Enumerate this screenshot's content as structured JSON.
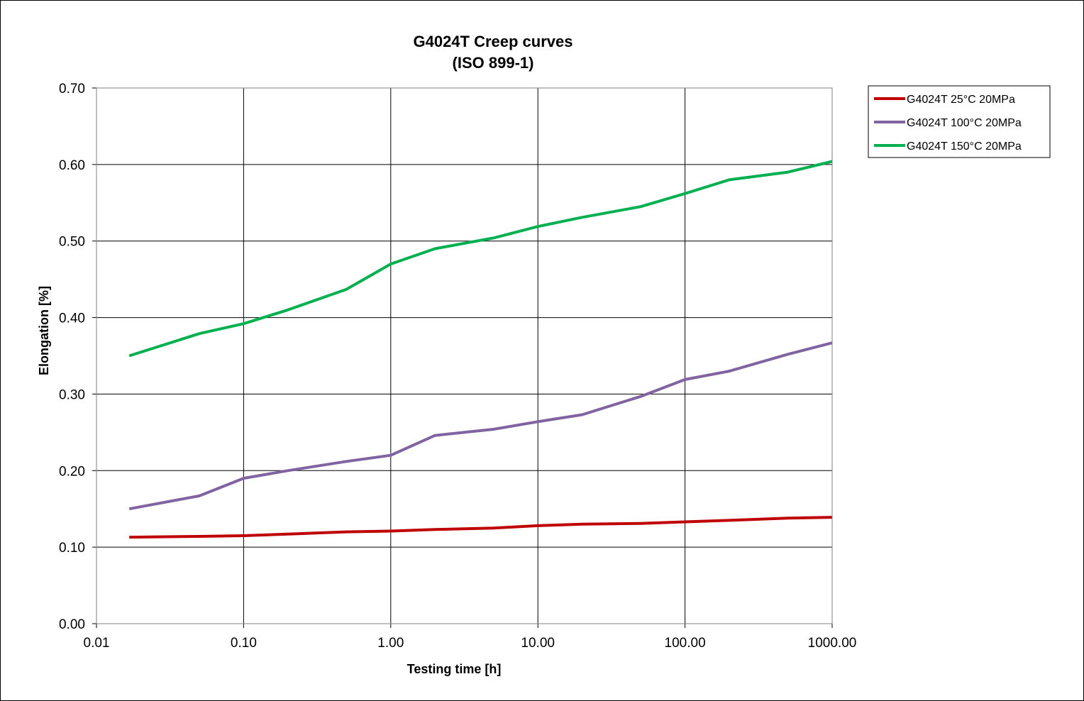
{
  "chart_data": {
    "type": "line",
    "title_line1": "G4024T Creep curves",
    "title_line2": "(ISO 899-1)",
    "xlabel": "Testing time [h]",
    "ylabel": "Elongation [%]",
    "x_scale": "log",
    "xlim": [
      0.01,
      1000
    ],
    "ylim": [
      0,
      0.7
    ],
    "x_ticks": [
      0.01,
      0.1,
      1,
      10,
      100,
      1000
    ],
    "x_tick_labels": [
      "0.01",
      "0.10",
      "1.00",
      "10.00",
      "100.00",
      "1000.00"
    ],
    "y_ticks": [
      0,
      0.1,
      0.2,
      0.3,
      0.4,
      0.5,
      0.6,
      0.7
    ],
    "y_tick_labels": [
      "0.00",
      "0.10",
      "0.20",
      "0.30",
      "0.40",
      "0.50",
      "0.60",
      "0.70"
    ],
    "grid": true,
    "legend_position": "right",
    "series": [
      {
        "name": "G4024T 25°C 20MPa",
        "color": "#c00000",
        "x": [
          0.0167,
          0.05,
          0.1,
          0.2,
          0.5,
          1,
          2,
          5,
          10,
          20,
          50,
          100,
          200,
          500,
          1000
        ],
        "y": [
          0.113,
          0.114,
          0.115,
          0.117,
          0.12,
          0.121,
          0.123,
          0.125,
          0.128,
          0.13,
          0.131,
          0.133,
          0.135,
          0.138,
          0.139
        ]
      },
      {
        "name": "G4024T 100°C 20MPa",
        "color": "#8064a2",
        "x": [
          0.0167,
          0.05,
          0.1,
          0.2,
          0.5,
          1,
          2,
          5,
          10,
          20,
          50,
          100,
          200,
          500,
          1000
        ],
        "y": [
          0.15,
          0.167,
          0.19,
          0.2,
          0.212,
          0.22,
          0.246,
          0.254,
          0.264,
          0.273,
          0.297,
          0.319,
          0.33,
          0.352,
          0.367
        ]
      },
      {
        "name": "G4024T 150°C 20MPa",
        "color": "#00b050",
        "x": [
          0.0167,
          0.05,
          0.1,
          0.2,
          0.5,
          1,
          2,
          5,
          10,
          20,
          50,
          100,
          200,
          500,
          1000
        ],
        "y": [
          0.35,
          0.379,
          0.392,
          0.41,
          0.437,
          0.47,
          0.49,
          0.504,
          0.519,
          0.531,
          0.545,
          0.562,
          0.58,
          0.59,
          0.604
        ]
      }
    ]
  }
}
